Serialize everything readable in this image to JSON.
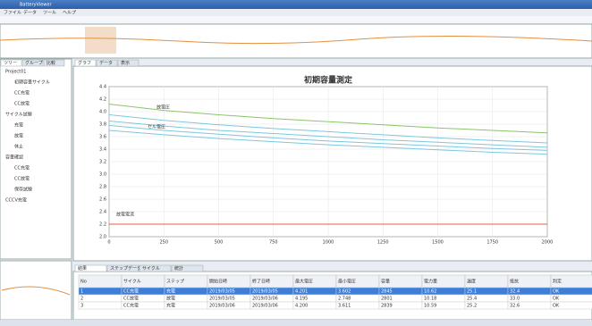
{
  "window": {
    "title": "BatteryViewer",
    "menu": [
      "ファイル",
      "データ",
      "ツール",
      "ヘルプ"
    ]
  },
  "tabs": {
    "left": [
      "ツリー",
      "グループ",
      "比較"
    ],
    "main": [
      "グラフ",
      "データ",
      "表示"
    ],
    "bottom": [
      "結果",
      "ステップデータ",
      "サイクル",
      "統計"
    ]
  },
  "tree": [
    "Project01",
    "初期容量サイクル",
    "CC充電",
    "CC放電",
    "サイクル試験",
    "充電",
    "放電",
    "休止",
    "容量確認",
    "CC充電",
    "CC放電",
    "保存試験",
    "CCCV充電"
  ],
  "chart_data": {
    "type": "line",
    "title": "初期容量測定",
    "annotations": [
      "放電圧",
      "セル電圧",
      "放電電流"
    ],
    "x": [
      0,
      250,
      500,
      750,
      1000,
      1250,
      1500,
      1750,
      2000
    ],
    "xlim": [
      0,
      2000
    ],
    "xticks": [
      0,
      250,
      500,
      750,
      1000,
      1250,
      1500,
      1750,
      2000
    ],
    "ylim": [
      2,
      4.4
    ],
    "yticks": [
      {
        "value": 2,
        "label": "2.0"
      },
      {
        "value": 2.2,
        "label": "2.2"
      },
      {
        "value": 2.4,
        "label": "2.4"
      },
      {
        "value": 2.6,
        "label": "2.6"
      },
      {
        "value": 2.8,
        "label": "2.8"
      },
      {
        "value": 3,
        "label": "3.0"
      },
      {
        "value": 3.2,
        "label": "3.2"
      },
      {
        "value": 3.4,
        "label": "3.4"
      },
      {
        "value": 3.6,
        "label": "3.6"
      },
      {
        "value": 3.8,
        "label": "3.8"
      },
      {
        "value": 4,
        "label": "4.0"
      },
      {
        "value": 4.2,
        "label": "4.2"
      },
      {
        "value": 4.4,
        "label": "4.4"
      }
    ],
    "grid": true,
    "series": [
      {
        "color": "#8cc46a",
        "values": [
          4.12,
          4.02,
          3.95,
          3.89,
          3.84,
          3.79,
          3.74,
          3.7,
          3.66
        ]
      },
      {
        "color": "#7fc6de",
        "values": [
          3.95,
          3.86,
          3.79,
          3.73,
          3.68,
          3.63,
          3.58,
          3.54,
          3.5
        ]
      },
      {
        "color": "#7fc6de",
        "values": [
          3.85,
          3.77,
          3.7,
          3.65,
          3.6,
          3.55,
          3.51,
          3.47,
          3.43
        ]
      },
      {
        "color": "#7fc6de",
        "values": [
          3.78,
          3.7,
          3.64,
          3.58,
          3.53,
          3.49,
          3.45,
          3.41,
          3.38
        ]
      },
      {
        "color": "#7fc6de",
        "values": [
          3.7,
          3.63,
          3.57,
          3.52,
          3.47,
          3.43,
          3.39,
          3.35,
          3.32
        ]
      },
      {
        "color": "#e06040",
        "values": [
          2.2,
          2.2,
          2.2,
          2.2,
          2.2,
          2.2,
          2.2,
          2.2,
          2.2
        ]
      }
    ]
  },
  "table": {
    "headers": [
      "No",
      "サイクル",
      "ステップ",
      "開始日時",
      "終了日時",
      "最大電圧",
      "最小電圧",
      "容量",
      "電力量",
      "温度",
      "抵抗",
      "判定"
    ],
    "rows": [
      [
        "1",
        "CC充電",
        "充電",
        "2019/03/05",
        "2019/03/05",
        "4.201",
        "3.602",
        "2845",
        "10.62",
        "25.1",
        "32.4",
        "OK"
      ],
      [
        "2",
        "CC放電",
        "放電",
        "2019/03/05",
        "2019/03/06",
        "4.195",
        "2.748",
        "2801",
        "10.18",
        "25.4",
        "33.0",
        "OK"
      ],
      [
        "3",
        "CC充電",
        "充電",
        "2019/03/06",
        "2019/03/06",
        "4.200",
        "3.611",
        "2839",
        "10.59",
        "25.2",
        "32.6",
        "OK"
      ]
    ]
  }
}
